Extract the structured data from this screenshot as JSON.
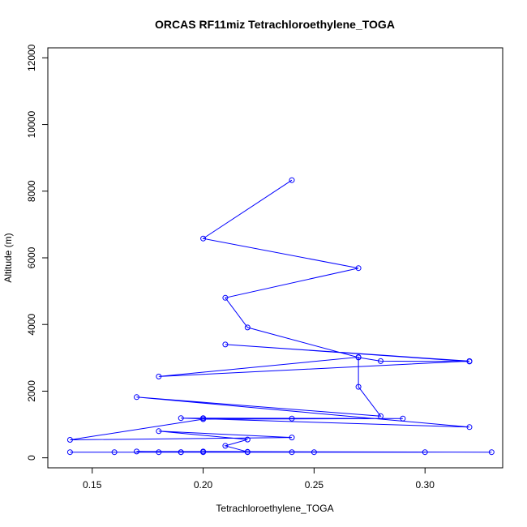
{
  "chart_data": {
    "type": "line",
    "title": "ORCAS RF11miz Tetrachloroethylene_TOGA",
    "xlabel": "Tetrachloroethylene_TOGA",
    "ylabel": "Altitude (m)",
    "xlim": [
      0.13,
      0.335
    ],
    "ylim": [
      -300,
      12300
    ],
    "x_ticks": [
      0.15,
      0.2,
      0.25,
      0.3
    ],
    "x_tick_labels": [
      "0.15",
      "0.20",
      "0.25",
      "0.30"
    ],
    "y_ticks": [
      0,
      2000,
      4000,
      6000,
      8000,
      10000,
      12000
    ],
    "y_tick_labels": [
      "0",
      "2000",
      "4000",
      "6000",
      "8000",
      "10000",
      "12000"
    ],
    "grid": false,
    "color": "#0000ff",
    "series": [
      {
        "marker": "open-circle",
        "x": [
          0.24,
          0.2,
          0.27,
          0.21,
          0.22,
          0.27,
          0.28,
          0.32,
          0.21,
          0.32,
          0.18,
          0.27,
          0.27,
          0.28,
          0.17,
          0.32,
          0.19,
          0.24,
          0.2,
          0.29,
          0.2,
          0.14,
          0.24,
          0.18,
          0.22,
          0.21,
          0.22,
          0.2,
          0.33,
          0.17,
          0.2,
          0.3,
          0.24,
          0.16,
          0.25,
          0.19,
          0.18,
          0.14,
          0.22,
          0.19
        ],
        "y": [
          8330,
          6580,
          5690,
          4800,
          3910,
          3010,
          2900,
          2890,
          3400,
          2900,
          2440,
          3020,
          2130,
          1250,
          1820,
          920,
          1190,
          1180,
          1190,
          1180,
          1160,
          540,
          610,
          800,
          550,
          360,
          180,
          190,
          170,
          190,
          170,
          170,
          170,
          170,
          170,
          170,
          170,
          170,
          170,
          170
        ]
      }
    ]
  }
}
